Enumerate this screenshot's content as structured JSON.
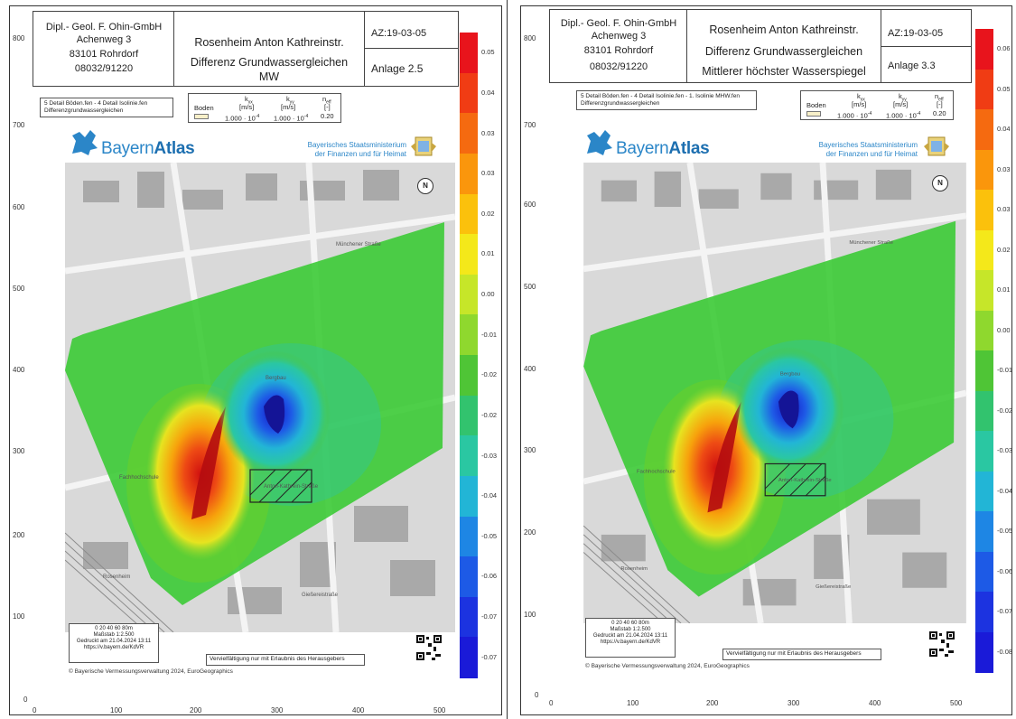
{
  "sheets": [
    {
      "company": [
        "Dipl.- Geol. F. Ohin-GmbH",
        "Achenweg 3",
        "83101 Rohrdorf",
        "08032/91220"
      ],
      "project": "Rosenheim Anton Kathreinstr.",
      "subtitle": "Differenz Grundwassergleichen",
      "subtitle2": "MW",
      "az": "AZ:19-03-05",
      "anlage": "Anlage 2.5",
      "legend_text": [
        "5 Detail Böden.fen - 4 Detail Isolinie.fen",
        "Differenzgrundwassergleichen"
      ],
      "colorbar_ticks": [
        "0.05",
        "0.04",
        "0.03",
        "0.03",
        "0.02",
        "0.01",
        "0.00",
        "-0.01",
        "-0.02",
        "-0.02",
        "-0.03",
        "-0.04",
        "-0.05",
        "-0.06",
        "-0.07",
        "-0.07"
      ],
      "colorbar_colors": [
        "#e8141c",
        "#f03c14",
        "#f56a10",
        "#fa960c",
        "#fbc10c",
        "#f4e81a",
        "#c6e629",
        "#8fd82e",
        "#4fc536",
        "#32c36e",
        "#2ac7a2",
        "#22b5d6",
        "#1e86e4",
        "#1d5ae6",
        "#1c33e0",
        "#1a1ad8"
      ]
    },
    {
      "company": [
        "Dipl.- Geol. F. Ohin-GmbH",
        "Achenweg 3",
        "83101 Rohrdorf",
        "08032/91220"
      ],
      "project": "Rosenheim Anton Kathreinstr.",
      "subtitle": "Differenz Grundwassergleichen",
      "subtitle2": "Mittlerer höchster Wasserspiegel",
      "az": "AZ:19-03-05",
      "anlage": "Anlage 3.3",
      "legend_text": [
        "5 Detail Böden.fen - 4 Detail Isolinie.fen - 1. Isolinie MHW.fen",
        "Differenzgrundwassergleichen"
      ],
      "colorbar_ticks": [
        "0.06",
        "0.05",
        "0.04",
        "0.03",
        "0.03",
        "0.02",
        "0.01",
        "0.00",
        "-0.01",
        "-0.02",
        "-0.03",
        "-0.04",
        "-0.05",
        "-0.06",
        "-0.07",
        "-0.08"
      ],
      "colorbar_colors": [
        "#e8141c",
        "#f03c14",
        "#f56a10",
        "#fa960c",
        "#fbc10c",
        "#f4e81a",
        "#c6e629",
        "#8fd82e",
        "#4fc536",
        "#32c36e",
        "#2ac7a2",
        "#22b5d6",
        "#1e86e4",
        "#1d5ae6",
        "#1c33e0",
        "#1a1ad8"
      ]
    }
  ],
  "common": {
    "params": {
      "boden": "Boden",
      "kxx": "k",
      "kxx_sub": "xx",
      "kyy": "k",
      "kyy_sub": "yy",
      "neff": "n",
      "neff_sub": "eff",
      "unit_k": "[m/s]",
      "unit_n": "[-]",
      "val_k": "1.000 · 10",
      "exp": "-4",
      "val_n": "0.20"
    },
    "atlas_light": "Bayern",
    "atlas_bold": "Atlas",
    "ministry": [
      "Bayerisches Staatsministerium",
      "der Finanzen und für Heimat"
    ],
    "north": "N",
    "scale": [
      "0    20    40    60    80m",
      "Maßstab 1:2.500",
      "Gedruckt am 21.04.2024 13:11",
      "https://v.bayern.de/KdVR"
    ],
    "note": "Vervielfältigung nur mit Erlaubnis des Herausgebers",
    "copyright": "© Bayerische Vermessungsverwaltung 2024, EuroGeographics",
    "yaxis": [
      "800",
      "700",
      "600",
      "500",
      "400",
      "300",
      "200",
      "100",
      "0"
    ],
    "xaxis": [
      "0",
      "100",
      "200",
      "300",
      "400",
      "500"
    ],
    "map_labels": [
      "Fachhochschule",
      "Bergbau",
      "Rosenheim"
    ],
    "street_labels": [
      "Anton-Kathrein-Straße",
      "Gießereistraße",
      "Münchener Straße"
    ]
  }
}
